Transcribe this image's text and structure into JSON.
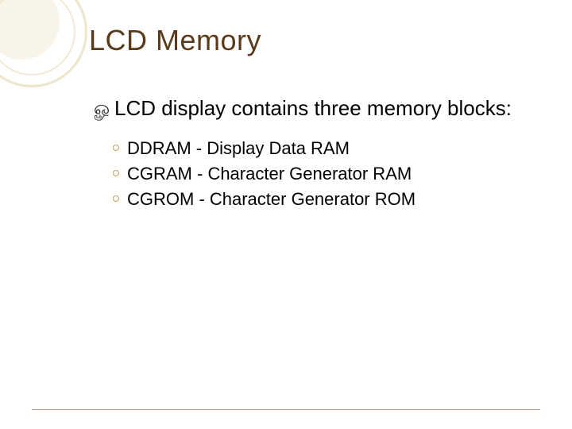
{
  "title": {
    "text": "LCD Memory",
    "color": "#5a3a1a",
    "fontsize": 36
  },
  "lead": {
    "bullet_color": "#333333",
    "text": "LCD display contains three memory blocks:",
    "fontsize": 26
  },
  "sublist": {
    "bullet_border_color": "#c9a35a",
    "fontsize": 22,
    "items": [
      "DDRAM - Display Data RAM",
      "CGRAM - Character Generator RAM",
      "CGROM - Character Generator ROM"
    ]
  },
  "decoration": {
    "ring_color": "#e9d9b5",
    "fill_color": "#f4e9d1"
  },
  "footer_rule_color": "#c9a35a",
  "background_color": "#ffffff"
}
